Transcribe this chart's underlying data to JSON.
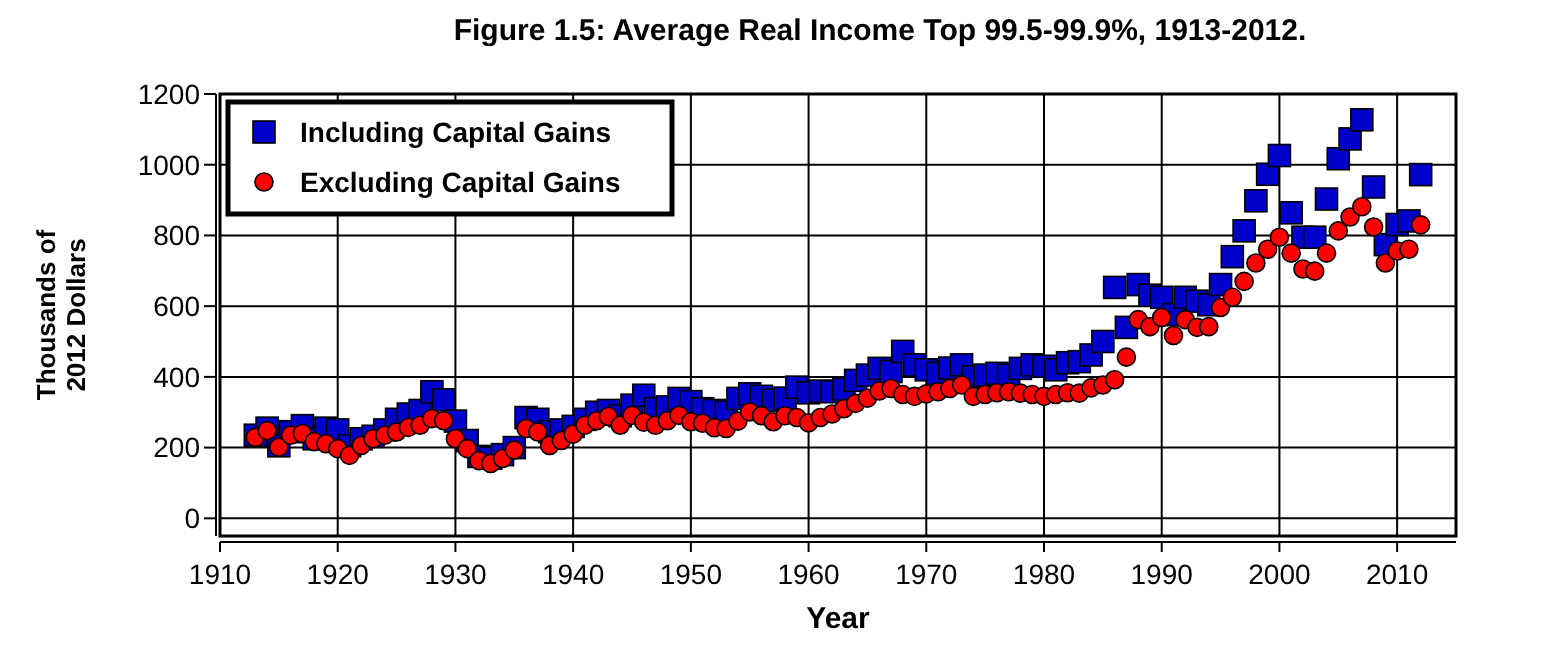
{
  "chart_data": {
    "type": "scatter",
    "title": "Figure 1.5: Average Real Income Top 99.5-99.9%, 1913-2012.",
    "xlabel": "Year",
    "ylabel": "Thousands of 2012 Dollars",
    "x": [
      1913,
      1914,
      1915,
      1916,
      1917,
      1918,
      1919,
      1920,
      1921,
      1922,
      1923,
      1924,
      1925,
      1926,
      1927,
      1928,
      1929,
      1930,
      1931,
      1932,
      1933,
      1934,
      1935,
      1936,
      1937,
      1938,
      1939,
      1940,
      1941,
      1942,
      1943,
      1944,
      1945,
      1946,
      1947,
      1948,
      1949,
      1950,
      1951,
      1952,
      1953,
      1954,
      1955,
      1956,
      1957,
      1958,
      1959,
      1960,
      1961,
      1962,
      1963,
      1964,
      1965,
      1966,
      1967,
      1968,
      1969,
      1970,
      1971,
      1972,
      1973,
      1974,
      1975,
      1976,
      1977,
      1978,
      1979,
      1980,
      1981,
      1982,
      1983,
      1984,
      1985,
      1986,
      1987,
      1988,
      1989,
      1990,
      1991,
      1992,
      1993,
      1994,
      1995,
      1996,
      1997,
      1998,
      1999,
      2000,
      2001,
      2002,
      2003,
      2004,
      2005,
      2006,
      2007,
      2008,
      2009,
      2010,
      2011,
      2012
    ],
    "series": [
      {
        "name": "Including Capital Gains",
        "color": "#0000cc",
        "marker": "square",
        "values": [
          235,
          255,
          205,
          245,
          262,
          225,
          255,
          250,
          205,
          225,
          232,
          250,
          280,
          295,
          305,
          358,
          335,
          275,
          220,
          175,
          170,
          180,
          200,
          285,
          280,
          245,
          250,
          260,
          280,
          300,
          305,
          290,
          320,
          348,
          310,
          315,
          339,
          330,
          310,
          305,
          300,
          339,
          352,
          345,
          334,
          340,
          371,
          355,
          360,
          358,
          365,
          390,
          405,
          424,
          415,
          472,
          434,
          420,
          410,
          425,
          434,
          400,
          405,
          410,
          405,
          424,
          434,
          430,
          420,
          440,
          443,
          462,
          500,
          653,
          540,
          661,
          631,
          625,
          576,
          625,
          614,
          604,
          661,
          740,
          813,
          898,
          973,
          1026,
          864,
          795,
          795,
          903,
          1017,
          1073,
          1127,
          937,
          774,
          831,
          841,
          972
        ]
      },
      {
        "name": "Excluding Capital Gains",
        "color": "#ff0000",
        "marker": "circle",
        "values": [
          229,
          248,
          201,
          235,
          240,
          217,
          211,
          197,
          178,
          206,
          225,
          235,
          244,
          257,
          263,
          282,
          276,
          225,
          197,
          163,
          155,
          169,
          193,
          254,
          244,
          206,
          220,
          238,
          263,
          276,
          288,
          263,
          291,
          272,
          263,
          276,
          291,
          273,
          269,
          256,
          254,
          275,
          301,
          290,
          273,
          290,
          285,
          270,
          285,
          295,
          310,
          325,
          340,
          360,
          367,
          350,
          345,
          352,
          358,
          367,
          377,
          345,
          350,
          355,
          358,
          354,
          350,
          345,
          350,
          355,
          354,
          369,
          377,
          392,
          456,
          562,
          542,
          568,
          517,
          562,
          540,
          542,
          596,
          625,
          670,
          722,
          761,
          795,
          750,
          705,
          699,
          750,
          813,
          852,
          881,
          824,
          722,
          756,
          761,
          830
        ]
      }
    ],
    "xlim": [
      1910,
      2015
    ],
    "xticks": [
      1910,
      1920,
      1930,
      1940,
      1950,
      1960,
      1970,
      1980,
      1990,
      2000,
      2010
    ],
    "ylim": [
      -50,
      1200
    ],
    "yticks": [
      0,
      200,
      400,
      600,
      800,
      1000,
      1200
    ],
    "grid": true,
    "legend": "top left"
  }
}
